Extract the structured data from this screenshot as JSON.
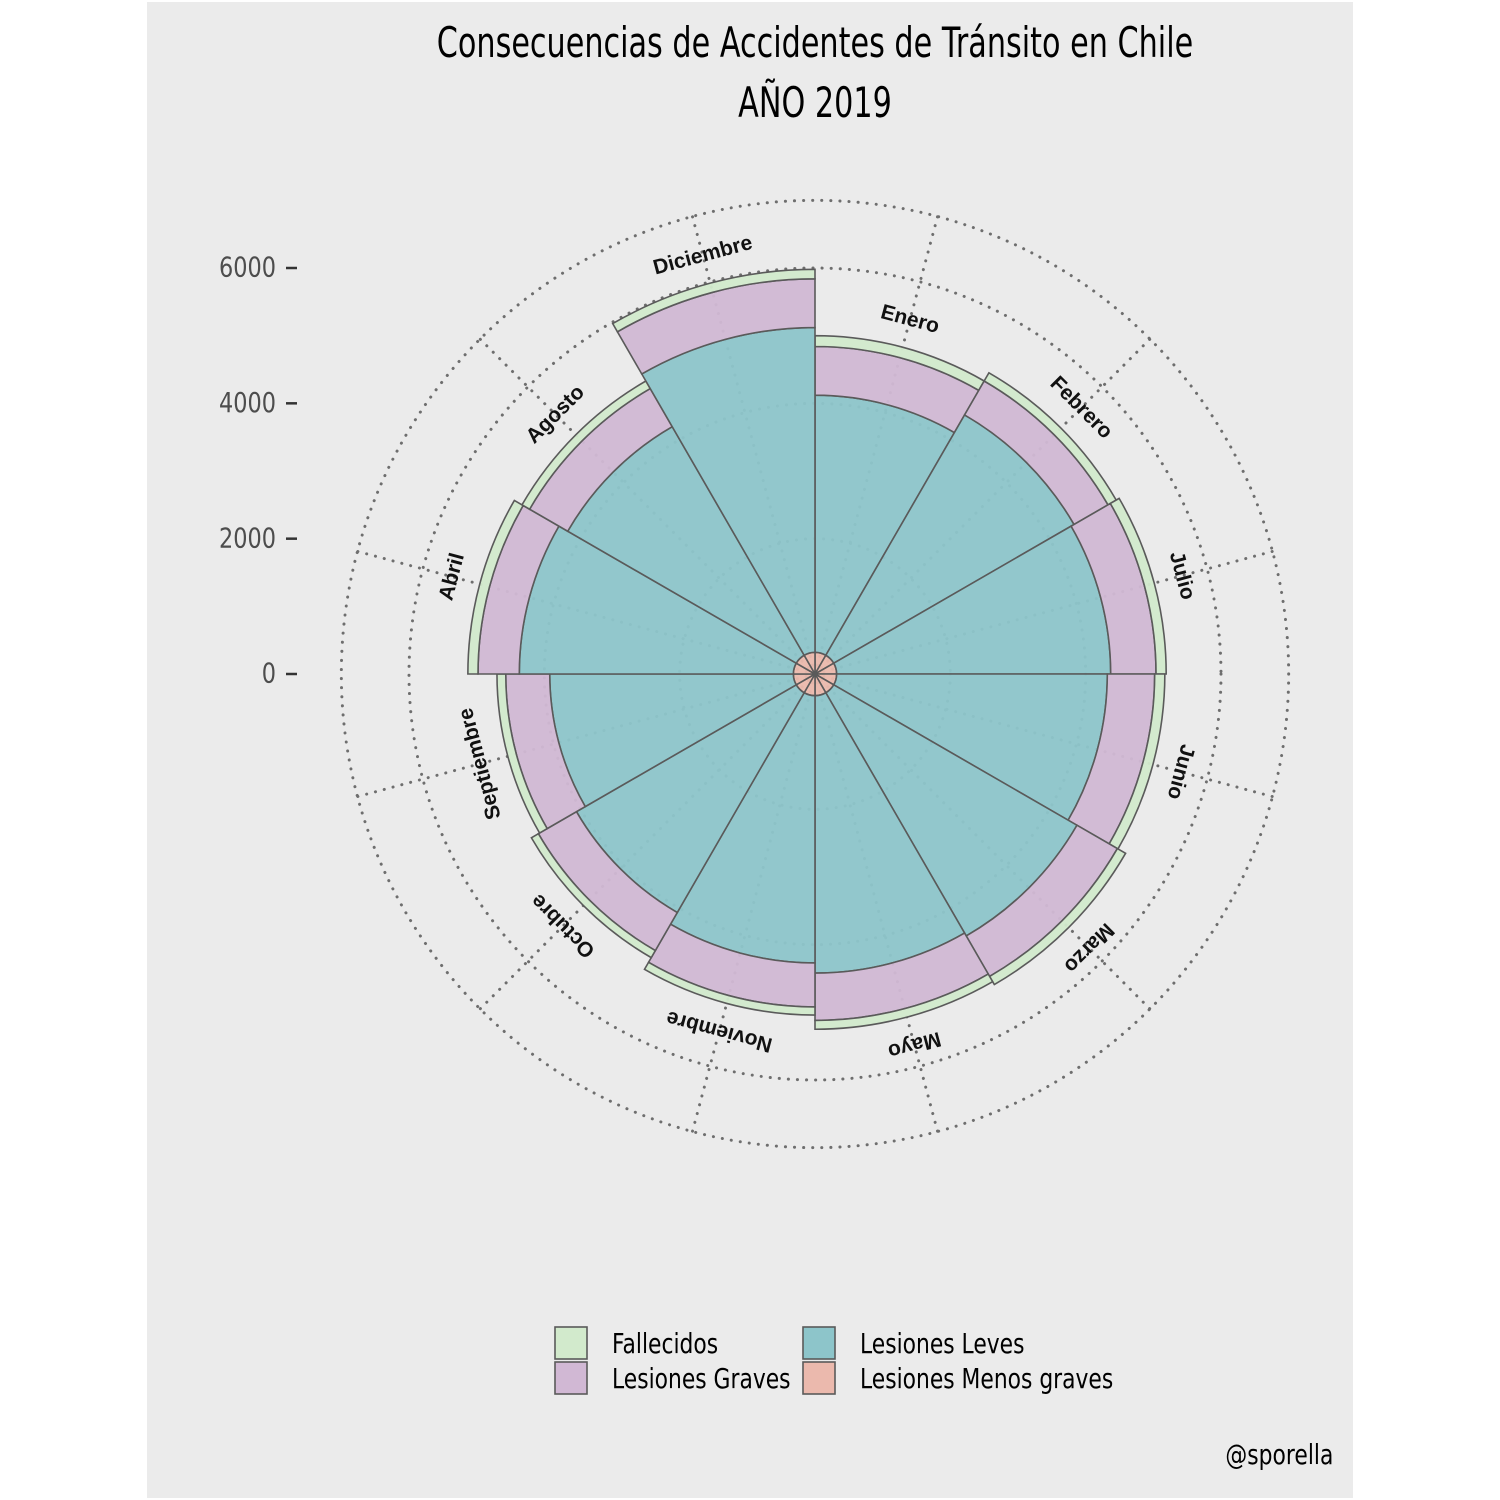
{
  "chart_data": {
    "type": "polar-stacked-bar",
    "title": [
      "Consecuencias de Accidentes de Tránsito en Chile",
      "AÑO 2019"
    ],
    "credit": "@sporella",
    "y_ticks": [
      0,
      2000,
      4000,
      6000
    ],
    "categories": [
      "Enero",
      "Febrero",
      "Julio",
      "Junio",
      "Marzo",
      "Mayo",
      "Noviembre",
      "Octubre",
      "Septiembre",
      "Abril",
      "Agosto",
      "Diciembre"
    ],
    "series": [
      {
        "name": "Lesiones Menos graves",
        "color": "#ebb9ad",
        "values": [
          320,
          320,
          320,
          320,
          320,
          320,
          320,
          320,
          320,
          320,
          320,
          320
        ]
      },
      {
        "name": "Lesiones Leves",
        "color": "#8dc5ca",
        "values": [
          3800,
          4100,
          4050,
          4000,
          4150,
          4100,
          3950,
          3750,
          3600,
          4050,
          3900,
          4800
        ]
      },
      {
        "name": "Lesiones Graves",
        "color": "#d1b8d4",
        "values": [
          720,
          580,
          670,
          700,
          690,
          700,
          650,
          650,
          650,
          610,
          650,
          720
        ]
      },
      {
        "name": "Fallecidos",
        "color": "#d2eacc",
        "values": [
          160,
          140,
          150,
          150,
          140,
          130,
          120,
          120,
          130,
          150,
          130,
          140
        ]
      }
    ],
    "legend": [
      {
        "name": "Fallecidos",
        "color": "#d2eacc"
      },
      {
        "name": "Lesiones Leves",
        "color": "#8dc5ca"
      },
      {
        "name": "Lesiones Graves",
        "color": "#d1b8d4"
      },
      {
        "name": "Lesiones Menos graves",
        "color": "#ebb9ad"
      }
    ],
    "legend_position": "bottom",
    "grid": "dotted"
  }
}
